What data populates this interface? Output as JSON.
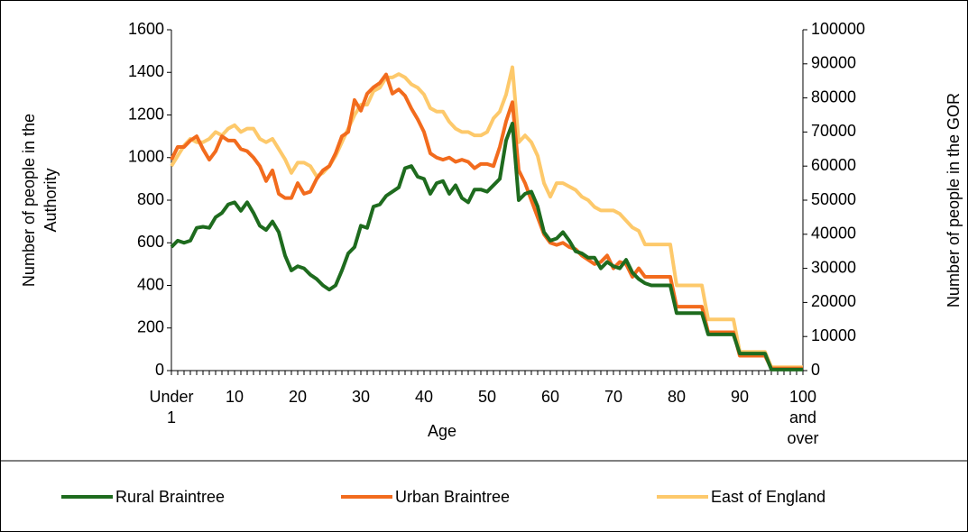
{
  "chart_data": {
    "type": "line",
    "xlabel": "Age",
    "ylabel": "Number of people in the Authority",
    "y2label": "Number of people in the GOR",
    "categories": [
      "Under 1",
      null,
      null,
      null,
      null,
      null,
      null,
      null,
      null,
      null,
      "10",
      null,
      null,
      null,
      null,
      null,
      null,
      null,
      null,
      null,
      "20",
      null,
      null,
      null,
      null,
      null,
      null,
      null,
      null,
      null,
      "30",
      null,
      null,
      null,
      null,
      null,
      null,
      null,
      null,
      null,
      "40",
      null,
      null,
      null,
      null,
      null,
      null,
      null,
      null,
      null,
      "50",
      null,
      null,
      null,
      null,
      null,
      null,
      null,
      null,
      null,
      "60",
      null,
      null,
      null,
      null,
      null,
      null,
      null,
      null,
      null,
      "70",
      null,
      null,
      null,
      null,
      null,
      null,
      null,
      null,
      null,
      "80",
      null,
      null,
      null,
      null,
      null,
      null,
      null,
      null,
      null,
      "90",
      null,
      null,
      null,
      null,
      null,
      null,
      null,
      null,
      null,
      "100 and over"
    ],
    "ylim": [
      0,
      1600
    ],
    "yticks": [
      0,
      200,
      400,
      600,
      800,
      1000,
      1200,
      1400,
      1600
    ],
    "y2lim": [
      0,
      100000
    ],
    "y2ticks": [
      0,
      10000,
      20000,
      30000,
      40000,
      50000,
      60000,
      70000,
      80000,
      90000,
      100000
    ],
    "series": [
      {
        "name": "Rural Braintree",
        "color": "#1e6b1e",
        "values": [
          580,
          610,
          600,
          610,
          670,
          675,
          670,
          720,
          740,
          780,
          790,
          750,
          790,
          740,
          680,
          660,
          700,
          650,
          540,
          470,
          490,
          480,
          450,
          430,
          400,
          380,
          400,
          470,
          550,
          580,
          680,
          670,
          770,
          780,
          820,
          840,
          860,
          950,
          960,
          910,
          900,
          830,
          880,
          890,
          830,
          870,
          810,
          790,
          850,
          850,
          840,
          870,
          900,
          1080,
          1160,
          800,
          830,
          840,
          770,
          650,
          610,
          620,
          650,
          610,
          560,
          550,
          530,
          530,
          480,
          510,
          490,
          480,
          520,
          460,
          430,
          410,
          400,
          400,
          400,
          400,
          270,
          270,
          270,
          270,
          270,
          170,
          170,
          170,
          170,
          170,
          80,
          80,
          80,
          80,
          80,
          5,
          5,
          5,
          5,
          5,
          5
        ]
      },
      {
        "name": "Urban Braintree",
        "color": "#f26b1d",
        "values": [
          990,
          1050,
          1050,
          1080,
          1100,
          1040,
          990,
          1030,
          1100,
          1080,
          1080,
          1040,
          1030,
          1000,
          960,
          890,
          940,
          830,
          810,
          810,
          880,
          830,
          840,
          900,
          940,
          960,
          1020,
          1100,
          1120,
          1270,
          1220,
          1300,
          1330,
          1350,
          1390,
          1300,
          1320,
          1290,
          1230,
          1180,
          1120,
          1020,
          1000,
          990,
          1000,
          980,
          990,
          980,
          950,
          970,
          970,
          960,
          1050,
          1170,
          1260,
          940,
          880,
          800,
          720,
          640,
          600,
          590,
          600,
          580,
          570,
          540,
          520,
          500,
          510,
          540,
          480,
          510,
          500,
          440,
          480,
          440,
          440,
          440,
          440,
          440,
          300,
          300,
          300,
          300,
          300,
          180,
          180,
          180,
          180,
          180,
          70,
          70,
          70,
          70,
          70,
          10,
          10,
          10,
          10,
          10,
          10
        ]
      },
      {
        "name": "East of England",
        "color": "#fdc96b",
        "axis": "y2",
        "values": [
          60000,
          63000,
          66000,
          68000,
          67000,
          67000,
          68000,
          70000,
          69000,
          71000,
          72000,
          70000,
          71000,
          71000,
          68000,
          67000,
          68000,
          65000,
          62000,
          58000,
          61000,
          61000,
          60000,
          57000,
          58000,
          60000,
          63000,
          67000,
          71000,
          75000,
          78000,
          78000,
          82000,
          83000,
          86000,
          86000,
          87000,
          86000,
          84000,
          83000,
          81000,
          77000,
          76000,
          76000,
          73000,
          71000,
          70000,
          70000,
          69000,
          69000,
          70000,
          74000,
          76000,
          81000,
          89000,
          67000,
          69000,
          67000,
          63000,
          55000,
          51000,
          55000,
          55000,
          54000,
          53000,
          51000,
          50000,
          48000,
          47000,
          47000,
          47000,
          46000,
          44000,
          42000,
          41000,
          37000,
          37000,
          37000,
          37000,
          37000,
          25000,
          25000,
          25000,
          25000,
          25000,
          15000,
          15000,
          15000,
          15000,
          15000,
          5500,
          5500,
          5500,
          5500,
          5500,
          1000,
          1000,
          1000,
          1000,
          1000,
          1000
        ]
      }
    ]
  }
}
